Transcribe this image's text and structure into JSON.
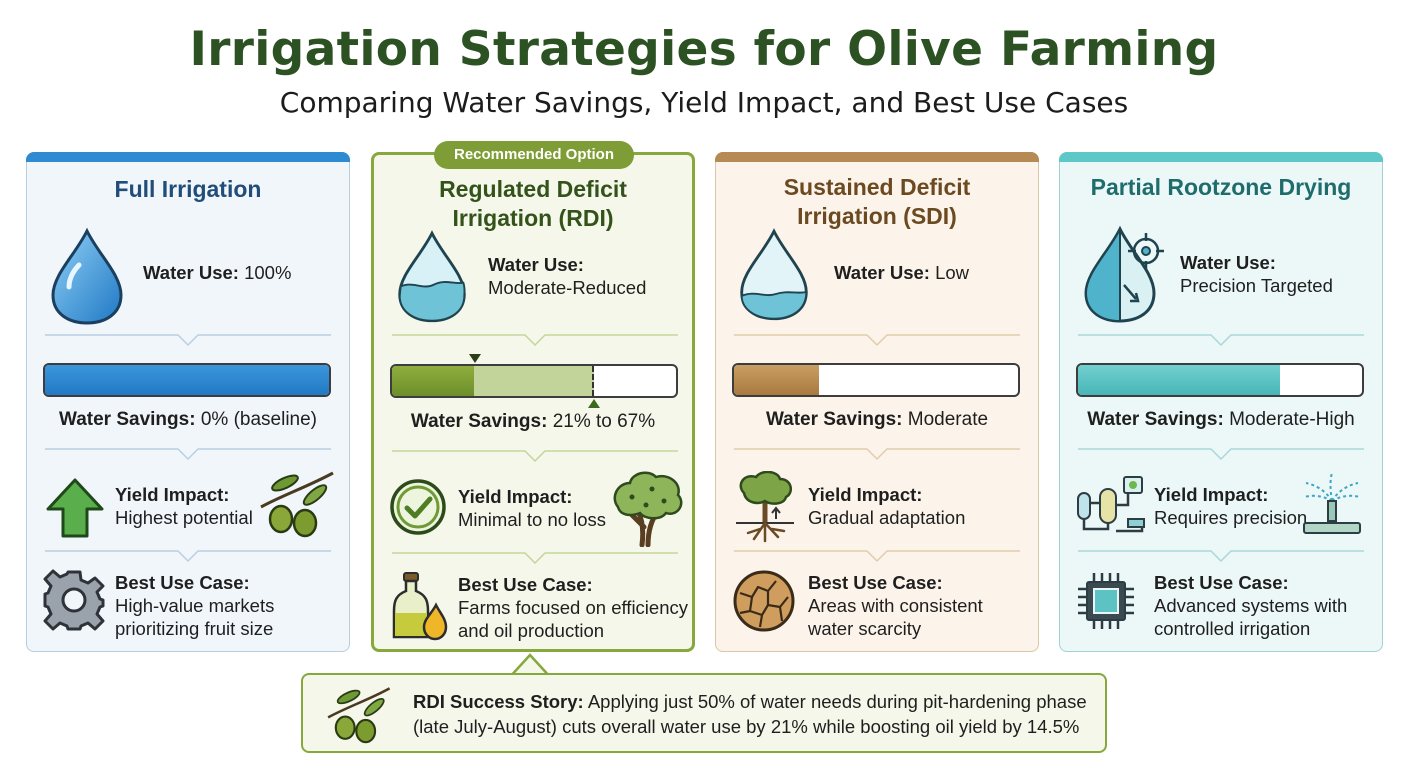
{
  "header": {
    "title": "Irrigation Strategies for Olive Farming",
    "subtitle": "Comparing Water Savings, Yield Impact, and Best Use Cases"
  },
  "cards": [
    {
      "title_lines": [
        "Full Irrigation"
      ],
      "water_use_label": "Water Use:",
      "water_use_value": "100%",
      "savings_label": "Water Savings:",
      "savings_value": "0% (baseline)",
      "savings_fill": 1.0,
      "yield_label": "Yield Impact:",
      "yield_value": "Highest potential",
      "best_label": "Best Use Case:",
      "best_lines": [
        "High-value markets",
        "prioritizing fruit size"
      ],
      "accent": "#2e8bd2",
      "icons": [
        "water-drop-icon",
        "up-arrow-icon",
        "olive-branch-icon",
        "gear-icon"
      ]
    },
    {
      "badge": "Recommended Option",
      "title_lines": [
        "Regulated Deficit",
        "Irrigation (RDI)"
      ],
      "water_use_label": "Water Use:",
      "water_use_value": "Moderate-Reduced",
      "savings_label": "Water Savings:",
      "savings_value": "21% to 67%",
      "savings_fill": 0.29,
      "savings_fill_range": [
        0.29,
        0.71
      ],
      "yield_label": "Yield Impact:",
      "yield_value": "Minimal to no loss",
      "best_label": "Best Use Case:",
      "best_lines": [
        "Farms focused on efficiency",
        "and oil production"
      ],
      "accent": "#7e9d36",
      "icons": [
        "half-water-drop-icon",
        "check-circle-icon",
        "olive-tree-icon",
        "olive-oil-bottle-icon"
      ]
    },
    {
      "title_lines": [
        "Sustained Deficit",
        "Irrigation (SDI)"
      ],
      "water_use_label": "Water Use:",
      "water_use_value": "Low",
      "savings_label": "Water Savings:",
      "savings_value": "Moderate",
      "savings_fill": 0.3,
      "yield_label": "Yield Impact:",
      "yield_value": "Gradual adaptation",
      "best_label": "Best Use Case:",
      "best_lines": [
        "Areas with consistent",
        "water scarcity"
      ],
      "accent": "#b68a54",
      "icons": [
        "low-water-drop-icon",
        "tree-roots-icon",
        "cracked-soil-icon"
      ]
    },
    {
      "title_lines": [
        "Partial Rootzone Drying"
      ],
      "water_use_label": "Water Use:",
      "water_use_value": "Precision Targeted",
      "savings_label": "Water Savings:",
      "savings_value": "Moderate-High",
      "savings_fill": 0.71,
      "yield_label": "Yield Impact:",
      "yield_value": "Requires precision",
      "best_label": "Best Use Case:",
      "best_lines": [
        "Advanced systems with",
        "controlled irrigation"
      ],
      "accent": "#5ec7c8",
      "icons": [
        "target-drop-icon",
        "filter-system-icon",
        "sprinkler-icon",
        "microchip-icon"
      ]
    }
  ],
  "callout": {
    "label": "RDI Success Story:",
    "line1": "Applying just 50% of water needs during pit-hardening phase",
    "line2": "(late July-August) cuts overall water use by 21% while boosting oil yield by 14.5%",
    "icon": "olive-branch-icon"
  }
}
